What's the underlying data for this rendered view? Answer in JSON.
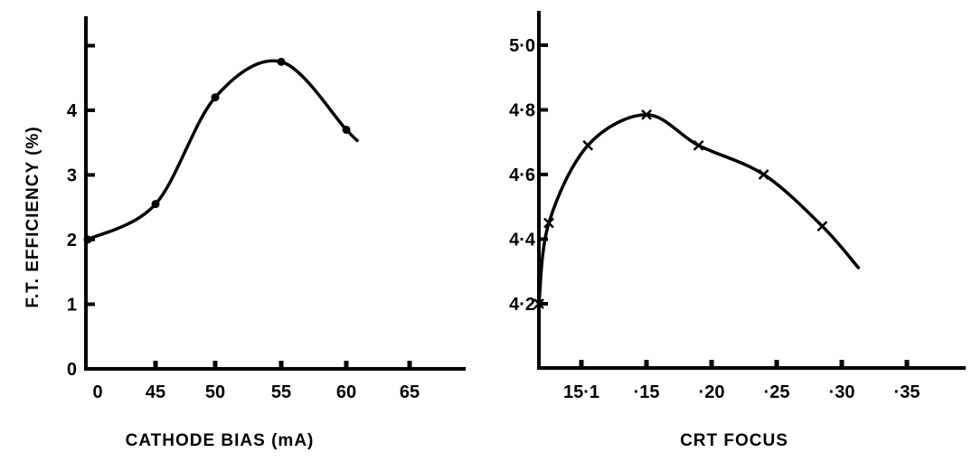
{
  "chart_data": [
    {
      "type": "line",
      "xlabel": "CATHODE BIAS (mA)",
      "ylabel": "F.T. EFFICIENCY (%)",
      "x_tick_labels": [
        "0",
        "45",
        "50",
        "55",
        "60",
        "65"
      ],
      "y_tick_labels": [
        "0",
        "1",
        "2",
        "3",
        "4"
      ],
      "ylim": [
        0,
        5.5
      ],
      "grid": false,
      "marker": "dot",
      "series": [
        {
          "points": [
            {
              "x": "0",
              "y": 2.0
            },
            {
              "x": "45",
              "y": 2.55
            },
            {
              "x": "50",
              "y": 4.2
            },
            {
              "x": "55",
              "y": 4.75
            },
            {
              "x": "60",
              "y": 3.7
            }
          ]
        }
      ]
    },
    {
      "type": "line",
      "xlabel": "CRT FOCUS",
      "ylabel": "",
      "x_tick_labels": [
        "15·1",
        "·15",
        "·20",
        "·25",
        "·30",
        "·35"
      ],
      "y_tick_labels": [
        "4·2",
        "4·4",
        "4·6",
        "4·8",
        "5·0"
      ],
      "ylim": [
        4.0,
        5.05
      ],
      "grid": false,
      "marker": "x",
      "series": [
        {
          "points": [
            {
              "x": 0.05,
              "y": 4.2
            },
            {
              "x": 0.075,
              "y": 4.45
            },
            {
              "x": 0.105,
              "y": 4.69
            },
            {
              "x": 0.15,
              "y": 4.785
            },
            {
              "x": 0.19,
              "y": 4.69
            },
            {
              "x": 0.24,
              "y": 4.6
            },
            {
              "x": 0.285,
              "y": 4.44
            }
          ]
        }
      ]
    }
  ],
  "style": {
    "ink": "#000000",
    "paper": "#ffffff"
  }
}
